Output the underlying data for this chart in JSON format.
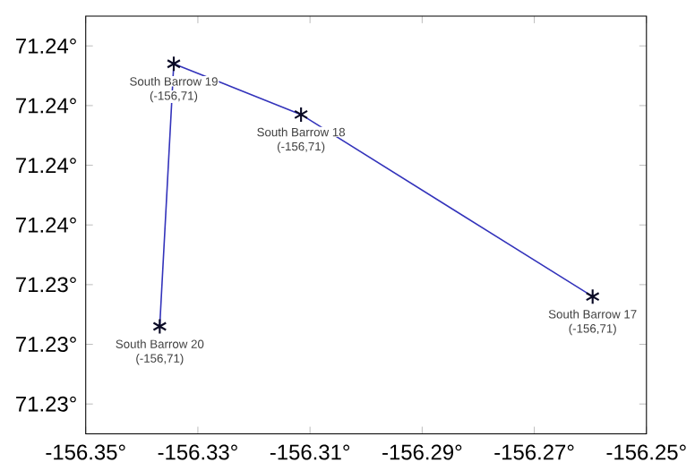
{
  "chart_data": {
    "type": "line",
    "x": [
      -156.3368,
      -156.3343,
      -156.3116,
      -156.2596
    ],
    "series": [
      {
        "color": "#3333bb",
        "values": [
          71.2326,
          71.2414,
          71.2397,
          71.2336
        ]
      }
    ],
    "marker": "cross",
    "line_style": "solid",
    "grid": false,
    "xlim": [
      -156.35,
      -156.25
    ],
    "xticks": [
      {
        "value": -156.35,
        "label": "-156.35°"
      },
      {
        "value": -156.33,
        "label": "-156.33°"
      },
      {
        "value": -156.31,
        "label": "-156.31°"
      },
      {
        "value": -156.29,
        "label": "-156.29°"
      },
      {
        "value": -156.27,
        "label": "-156.27°"
      },
      {
        "value": -156.25,
        "label": "-156.25°"
      }
    ],
    "ylim": [
      71.229,
      71.243
    ],
    "yticks": [
      {
        "value": 71.23,
        "label": "71.23°"
      },
      {
        "value": 71.232,
        "label": "71.23°"
      },
      {
        "value": 71.234,
        "label": "71.23°"
      },
      {
        "value": 71.236,
        "label": "71.24°"
      },
      {
        "value": 71.238,
        "label": "71.24°"
      },
      {
        "value": 71.24,
        "label": "71.24°"
      },
      {
        "value": 71.242,
        "label": "71.24°"
      }
    ],
    "annotations": [
      {
        "text": "South Barrow 20",
        "x": -156.3368,
        "y": 71.2326
      },
      {
        "text": "(-156,71)",
        "x": -156.3368,
        "y": 71.2326
      },
      {
        "text": "South Barrow 19",
        "x": -156.3343,
        "y": 71.2414
      },
      {
        "text": "(-156,71)",
        "x": -156.3343,
        "y": 71.2414
      },
      {
        "text": "South Barrow 18",
        "x": -156.3116,
        "y": 71.2397
      },
      {
        "text": "(-156,71)",
        "x": -156.3116,
        "y": 71.2397
      },
      {
        "text": "South Barrow 17",
        "x": -156.2596,
        "y": 71.2336
      },
      {
        "text": "(-156,71)",
        "x": -156.2596,
        "y": 71.2336
      }
    ]
  }
}
